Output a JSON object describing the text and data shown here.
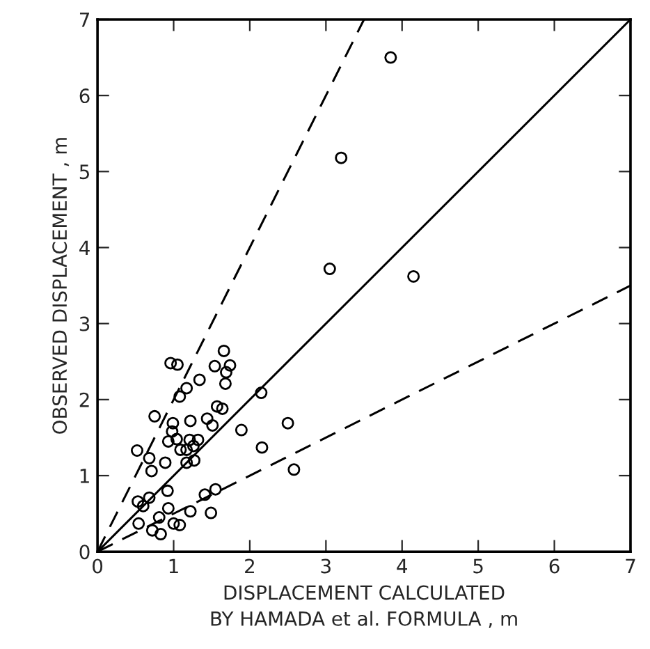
{
  "chart_data": {
    "type": "scatter",
    "xlabel": "DISPLACEMENT CALCULATED\nBY HAMADA et al. FORMULA , m",
    "ylabel": "OBSERVED DISPLACEMENT , m",
    "xlim": [
      0,
      7
    ],
    "ylim": [
      0,
      7
    ],
    "xticks": [
      0,
      1,
      2,
      3,
      4,
      5,
      6,
      7
    ],
    "yticks": [
      0,
      1,
      2,
      3,
      4,
      5,
      6,
      7
    ],
    "grid": false,
    "marker": "circle",
    "series": [
      {
        "color": "#000000",
        "x": [
          1.66,
          0.96,
          1.05,
          1.54,
          1.74,
          1.69,
          1.34,
          1.17,
          1.08,
          1.68,
          0.75,
          1.57,
          1.64,
          1.22,
          0.99,
          1.44,
          1.51,
          0.98,
          1.89,
          2.5,
          0.93,
          1.04,
          1.21,
          1.32,
          0.52,
          0.68,
          1.09,
          1.17,
          1.26,
          2.16,
          0.89,
          0.71,
          1.17,
          1.27,
          2.15,
          0.92,
          0.53,
          0.68,
          0.6,
          1.41,
          1.55,
          0.93,
          1.22,
          1.49,
          0.81,
          0.54,
          0.72,
          0.83,
          1.0,
          1.08,
          3.85,
          3.2,
          3.05,
          4.15,
          2.58
        ],
        "values": [
          2.64,
          2.48,
          2.46,
          2.44,
          2.45,
          2.36,
          2.26,
          2.15,
          2.04,
          2.21,
          1.78,
          1.91,
          1.88,
          1.72,
          1.69,
          1.75,
          1.66,
          1.58,
          1.6,
          1.69,
          1.45,
          1.48,
          1.47,
          1.47,
          1.33,
          1.23,
          1.34,
          1.34,
          1.39,
          1.37,
          1.17,
          1.06,
          1.17,
          1.2,
          2.09,
          0.8,
          0.66,
          0.71,
          0.6,
          0.75,
          0.82,
          0.57,
          0.53,
          0.51,
          0.45,
          0.37,
          0.28,
          0.23,
          0.37,
          0.35,
          6.5,
          5.18,
          3.72,
          3.62,
          1.08
        ]
      },
      {
        "type": "line",
        "color": "#000000",
        "line_style": "dashed",
        "marker": "none",
        "x": [
          0,
          3.5
        ],
        "values": [
          0,
          7
        ]
      },
      {
        "type": "line",
        "color": "#000000",
        "line_style": "solid",
        "marker": "none",
        "x": [
          0,
          7
        ],
        "values": [
          0,
          7
        ]
      },
      {
        "type": "line",
        "color": "#000000",
        "line_style": "dashed",
        "marker": "none",
        "x": [
          0,
          7
        ],
        "values": [
          0,
          3.5
        ]
      }
    ]
  }
}
